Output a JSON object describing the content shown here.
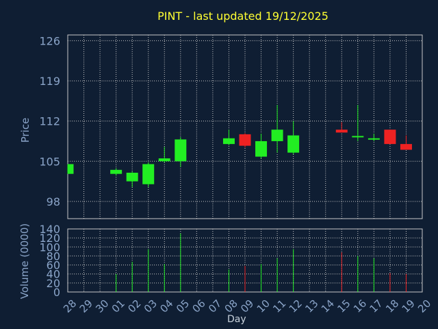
{
  "chart_data": {
    "type": "candlestick",
    "title": "PINT - last updated 19/12/2025",
    "xlabel": "Day",
    "categories": [
      "28",
      "29",
      "30",
      "01",
      "02",
      "03",
      "04",
      "05",
      "06",
      "07",
      "08",
      "09",
      "10",
      "11",
      "12",
      "13",
      "14",
      "15",
      "16",
      "17",
      "18",
      "19",
      "20"
    ],
    "price_panel": {
      "ylabel": "Price",
      "ylim": [
        95,
        127
      ],
      "yticks": [
        98,
        105,
        112,
        119,
        126
      ],
      "candles": [
        {
          "x": "28",
          "open": 102.8,
          "close": 104.5,
          "high": 104.5,
          "low": 102.8,
          "color": "green"
        },
        {
          "x": "01",
          "open": 102.8,
          "close": 103.5,
          "high": 103.8,
          "low": 102.5,
          "color": "green"
        },
        {
          "x": "02",
          "open": 101.5,
          "close": 103.0,
          "high": 103.2,
          "low": 100.5,
          "color": "green"
        },
        {
          "x": "03",
          "open": 101.0,
          "close": 104.5,
          "high": 104.8,
          "low": 100.5,
          "color": "green"
        },
        {
          "x": "04",
          "open": 105.0,
          "close": 105.5,
          "high": 107.5,
          "low": 104.8,
          "color": "green"
        },
        {
          "x": "05",
          "open": 105.0,
          "close": 108.8,
          "high": 109.2,
          "low": 104.0,
          "color": "green"
        },
        {
          "x": "08",
          "open": 108.0,
          "close": 109.0,
          "high": 110.5,
          "low": 107.8,
          "color": "green"
        },
        {
          "x": "09",
          "open": 109.7,
          "close": 107.7,
          "high": 109.9,
          "low": 107.4,
          "color": "red"
        },
        {
          "x": "10",
          "open": 105.8,
          "close": 108.5,
          "high": 109.8,
          "low": 105.5,
          "color": "green"
        },
        {
          "x": "11",
          "open": 108.5,
          "close": 110.5,
          "high": 114.8,
          "low": 106.5,
          "color": "green"
        },
        {
          "x": "12",
          "open": 106.5,
          "close": 109.5,
          "high": 112.0,
          "low": 106.2,
          "color": "green"
        },
        {
          "x": "15",
          "open": 110.5,
          "close": 110.0,
          "high": 111.8,
          "low": 110.0,
          "color": "red"
        },
        {
          "x": "16",
          "open": 109.2,
          "close": 109.4,
          "high": 114.8,
          "low": 108.5,
          "color": "green"
        },
        {
          "x": "17",
          "open": 108.8,
          "close": 109.0,
          "high": 109.8,
          "low": 108.5,
          "color": "green"
        },
        {
          "x": "18",
          "open": 110.5,
          "close": 108.0,
          "high": 110.5,
          "low": 108.0,
          "color": "red"
        },
        {
          "x": "19",
          "open": 108.0,
          "close": 107.0,
          "high": 109.5,
          "low": 107.0,
          "color": "red"
        }
      ]
    },
    "volume_panel": {
      "ylabel": "Volume (0000)",
      "ylim": [
        0,
        140
      ],
      "yticks": [
        0,
        20,
        40,
        60,
        80,
        100,
        120,
        140
      ],
      "bars": [
        {
          "x": "01",
          "value": 40,
          "color": "green"
        },
        {
          "x": "02",
          "value": 67,
          "color": "green"
        },
        {
          "x": "03",
          "value": 95,
          "color": "green"
        },
        {
          "x": "04",
          "value": 62,
          "color": "green"
        },
        {
          "x": "05",
          "value": 130,
          "color": "green"
        },
        {
          "x": "08",
          "value": 50,
          "color": "green"
        },
        {
          "x": "09",
          "value": 58,
          "color": "red"
        },
        {
          "x": "10",
          "value": 62,
          "color": "green"
        },
        {
          "x": "11",
          "value": 75,
          "color": "green"
        },
        {
          "x": "12",
          "value": 95,
          "color": "green"
        },
        {
          "x": "15",
          "value": 88,
          "color": "red"
        },
        {
          "x": "16",
          "value": 80,
          "color": "green"
        },
        {
          "x": "17",
          "value": 75,
          "color": "green"
        },
        {
          "x": "18",
          "value": 42,
          "color": "red"
        },
        {
          "x": "19",
          "value": 40,
          "color": "red"
        }
      ]
    },
    "grid": true,
    "colors": {
      "background": "#0f1e33",
      "grid": "#c8c8c8",
      "up": "#22ee22",
      "down": "#ee2222",
      "title": "#ffff33",
      "axis_text": "#8aa4c8"
    }
  }
}
